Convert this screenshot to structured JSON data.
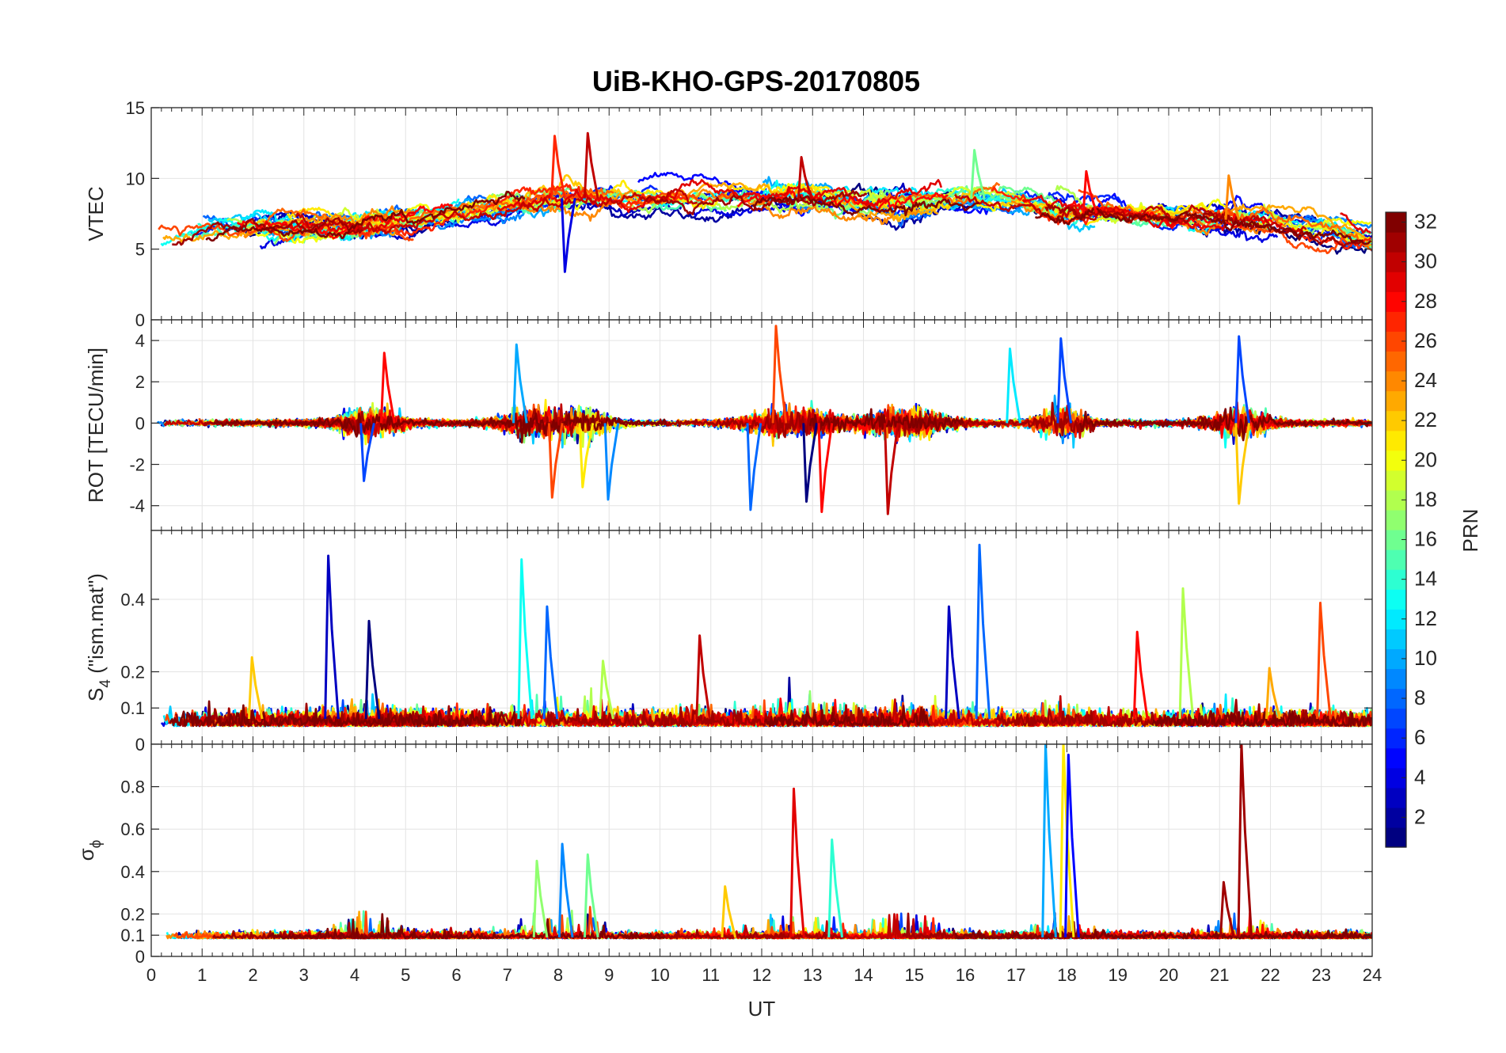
{
  "title": "UiB-KHO-GPS-20170805",
  "chart_data": [
    {
      "type": "line",
      "panel": "vtec",
      "ylabel": "VTEC",
      "ylim": [
        0,
        15
      ],
      "yticks": [
        0,
        5,
        10,
        15
      ],
      "xlim": [
        0,
        24
      ],
      "baseline": [
        [
          0,
          5.8
        ],
        [
          1,
          6.3
        ],
        [
          2,
          6.6
        ],
        [
          3,
          6.7
        ],
        [
          4,
          6.6
        ],
        [
          5,
          6.9
        ],
        [
          6,
          7.6
        ],
        [
          7,
          8.1
        ],
        [
          8,
          8.6
        ],
        [
          9,
          8.6
        ],
        [
          10,
          8.7
        ],
        [
          11,
          8.6
        ],
        [
          12,
          8.6
        ],
        [
          13,
          8.5
        ],
        [
          14,
          8.3
        ],
        [
          15,
          8.4
        ],
        [
          16,
          8.6
        ],
        [
          17,
          8.3
        ],
        [
          18,
          7.6
        ],
        [
          19,
          7.4
        ],
        [
          20,
          7.0
        ],
        [
          21,
          7.1
        ],
        [
          22,
          7.0
        ],
        [
          23,
          6.4
        ],
        [
          24,
          5.6
        ]
      ],
      "spikes": [
        {
          "x": 7.95,
          "y": 13.0
        },
        {
          "x": 8.6,
          "y": 13.2
        },
        {
          "x": 8.15,
          "y": 3.4
        },
        {
          "x": 16.2,
          "y": 12.0
        },
        {
          "x": 18.4,
          "y": 10.5
        },
        {
          "x": 21.2,
          "y": 10.2
        },
        {
          "x": 12.8,
          "y": 11.5
        }
      ]
    },
    {
      "type": "line",
      "panel": "rot",
      "ylabel": "ROT [TECU/min]",
      "ylim": [
        -5.2,
        5
      ],
      "yticks": [
        -4,
        -2,
        0,
        2,
        4
      ],
      "xlim": [
        0,
        24
      ],
      "spikes": [
        {
          "x": 7.2,
          "y": 3.8
        },
        {
          "x": 8.5,
          "y": -3.1
        },
        {
          "x": 12.3,
          "y": 4.7
        },
        {
          "x": 11.8,
          "y": -4.2
        },
        {
          "x": 12.9,
          "y": -3.8
        },
        {
          "x": 13.2,
          "y": -4.3
        },
        {
          "x": 14.5,
          "y": -4.4
        },
        {
          "x": 17.9,
          "y": 4.1
        },
        {
          "x": 21.4,
          "y": 4.2
        },
        {
          "x": 21.4,
          "y": -3.9
        },
        {
          "x": 4.6,
          "y": 3.4
        },
        {
          "x": 4.2,
          "y": -2.8
        },
        {
          "x": 7.9,
          "y": -3.6
        },
        {
          "x": 9.0,
          "y": -3.7
        },
        {
          "x": 16.9,
          "y": 3.6
        }
      ]
    },
    {
      "type": "line",
      "panel": "s4",
      "ylabel": "S",
      "ylabel_sub": "4",
      "ylabel_suffix": " (\"ism.mat\")",
      "ylim": [
        0,
        0.59
      ],
      "yticks": [
        0,
        0.1,
        0.2,
        0.4
      ],
      "xlim": [
        0,
        24
      ],
      "spikes": [
        {
          "x": 3.5,
          "y": 0.52
        },
        {
          "x": 4.3,
          "y": 0.34
        },
        {
          "x": 7.3,
          "y": 0.51
        },
        {
          "x": 7.8,
          "y": 0.38
        },
        {
          "x": 16.3,
          "y": 0.55
        },
        {
          "x": 15.7,
          "y": 0.38
        },
        {
          "x": 20.3,
          "y": 0.43
        },
        {
          "x": 23.0,
          "y": 0.39
        },
        {
          "x": 19.4,
          "y": 0.31
        },
        {
          "x": 10.8,
          "y": 0.3
        },
        {
          "x": 8.9,
          "y": 0.23
        },
        {
          "x": 2.0,
          "y": 0.24
        },
        {
          "x": 22.0,
          "y": 0.21
        }
      ]
    },
    {
      "type": "line",
      "panel": "sigma_phi",
      "ylabel": "σ",
      "ylabel_sub": "ϕ",
      "ylim": [
        0,
        1.0
      ],
      "yticks": [
        0,
        0.1,
        0.2,
        0.4,
        0.6,
        0.8
      ],
      "xlim": [
        0,
        24
      ],
      "xlabel": "UT",
      "xticks": [
        0,
        1,
        2,
        3,
        4,
        5,
        6,
        7,
        8,
        9,
        10,
        11,
        12,
        13,
        14,
        15,
        16,
        17,
        18,
        19,
        20,
        21,
        22,
        23,
        24
      ],
      "spikes": [
        {
          "x": 17.6,
          "y": 1.0
        },
        {
          "x": 17.95,
          "y": 1.0
        },
        {
          "x": 18.05,
          "y": 0.95
        },
        {
          "x": 21.45,
          "y": 1.0
        },
        {
          "x": 12.65,
          "y": 0.79
        },
        {
          "x": 13.4,
          "y": 0.55
        },
        {
          "x": 8.1,
          "y": 0.53
        },
        {
          "x": 8.6,
          "y": 0.48
        },
        {
          "x": 7.6,
          "y": 0.45
        },
        {
          "x": 21.1,
          "y": 0.35
        },
        {
          "x": 11.3,
          "y": 0.33
        }
      ]
    }
  ],
  "colorbar": {
    "label": "PRN",
    "min": 1,
    "max": 32,
    "ticks": [
      2,
      4,
      6,
      8,
      10,
      12,
      14,
      16,
      18,
      20,
      22,
      24,
      26,
      28,
      30,
      32
    ]
  }
}
